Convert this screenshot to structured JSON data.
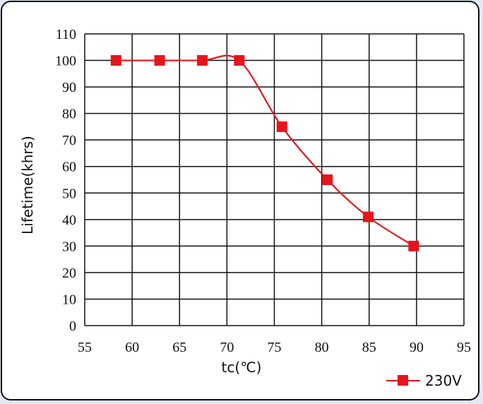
{
  "chart_data": {
    "type": "line",
    "title": "",
    "xlabel": "tc(℃)",
    "ylabel": "Lifetime(khrs)",
    "xlim": [
      55,
      95
    ],
    "ylim": [
      0,
      110
    ],
    "x_ticks": [
      "55",
      "60",
      "65",
      "70",
      "75",
      "80",
      "85",
      "90",
      "95"
    ],
    "y_ticks": [
      "0",
      "10",
      "20",
      "30",
      "40",
      "50",
      "60",
      "70",
      "80",
      "90",
      "100",
      "110"
    ],
    "grid": true,
    "legend_position": "bottom-right",
    "series": [
      {
        "name": "230V",
        "color": "#e8141b",
        "marker": "square",
        "x": [
          58.3,
          62.9,
          67.4,
          71.3,
          75.8,
          80.6,
          84.9,
          89.7
        ],
        "y": [
          100,
          100,
          100,
          100,
          75,
          55,
          41,
          30
        ]
      }
    ]
  },
  "colors": {
    "frame_border": "#111111",
    "page_background": "#dfe8f3",
    "grid": "#111111",
    "series": "#e8141b"
  }
}
